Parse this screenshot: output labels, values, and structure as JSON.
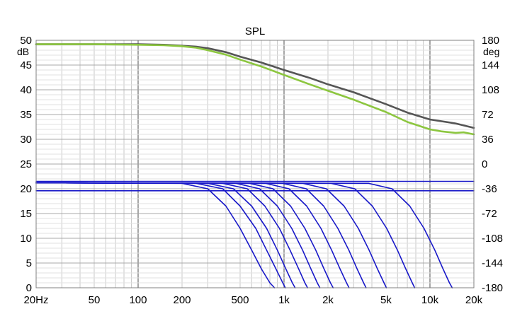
{
  "chart_data": {
    "type": "line",
    "title": "SPL",
    "x_scale": "log",
    "xlim": [
      20,
      20000
    ],
    "ylim_left": [
      0,
      50
    ],
    "ylim_right": [
      -180,
      180
    ],
    "left_unit": "dB",
    "right_unit": "deg",
    "x_ticks": [
      {
        "value": 20,
        "label": "20Hz"
      },
      {
        "value": 50,
        "label": "50"
      },
      {
        "value": 100,
        "label": "100"
      },
      {
        "value": 200,
        "label": "200"
      },
      {
        "value": 500,
        "label": "500"
      },
      {
        "value": 1000,
        "label": "1k"
      },
      {
        "value": 2000,
        "label": "2k"
      },
      {
        "value": 5000,
        "label": "5k"
      },
      {
        "value": 10000,
        "label": "10k"
      },
      {
        "value": 20000,
        "label": "20k"
      }
    ],
    "left_ticks": [
      "50",
      "45",
      "40",
      "35",
      "30",
      "25",
      "20",
      "15",
      "10",
      "5",
      "0"
    ],
    "left_tick_values": [
      50,
      45,
      40,
      35,
      30,
      25,
      20,
      15,
      10,
      5,
      0
    ],
    "right_ticks": [
      "180",
      "144",
      "108",
      "72",
      "36",
      "0",
      "-36",
      "-72",
      "-108",
      "-144",
      "-180"
    ],
    "right_tick_values": [
      180,
      144,
      108,
      72,
      36,
      0,
      -36,
      -72,
      -108,
      -144,
      -180
    ],
    "grid": true,
    "colors": {
      "gray": "#555555",
      "green": "#8cc63f",
      "blue": "#1818c8",
      "grid": "#c8c8c8",
      "major_grid": "#808080"
    },
    "series": [
      {
        "color": "#555555",
        "x": [
          20,
          50,
          100,
          150,
          200,
          250,
          300,
          400,
          500,
          700,
          1000,
          1500,
          2000,
          3000,
          5000,
          7000,
          10000,
          15000,
          20000
        ],
        "y": [
          49.2,
          49.2,
          49.2,
          49.1,
          48.9,
          48.7,
          48.4,
          47.6,
          46.7,
          45.5,
          44.0,
          42.4,
          41.1,
          39.5,
          37.1,
          35.4,
          34.0,
          33.2,
          32.3
        ]
      },
      {
        "color": "#8cc63f",
        "x": [
          20,
          50,
          100,
          150,
          200,
          250,
          300,
          400,
          500,
          700,
          1000,
          1500,
          2000,
          3000,
          5000,
          7000,
          10000,
          12000,
          15000,
          17000,
          20000
        ],
        "y": [
          49.2,
          49.2,
          49.1,
          49.0,
          48.8,
          48.5,
          48.0,
          47.1,
          46.1,
          44.7,
          43.0,
          41.1,
          39.8,
          38.0,
          35.5,
          33.5,
          32.0,
          31.6,
          31.3,
          31.4,
          31.0
        ]
      },
      {
        "color": "#1818c8",
        "x": [
          20,
          20000
        ],
        "y": [
          21.5,
          21.5
        ]
      },
      {
        "color": "#1818c8",
        "x": [
          20,
          20000
        ],
        "y": [
          19.6,
          19.6
        ]
      },
      {
        "color": "#1818c8",
        "x": [
          20,
          200,
          300,
          400,
          500,
          600,
          700,
          800,
          860
        ],
        "y": [
          21.2,
          21.1,
          20.0,
          16.5,
          12.0,
          7.6,
          3.8,
          1.0,
          0
        ]
      },
      {
        "color": "#1818c8",
        "x": [
          20,
          250,
          380,
          500,
          640,
          760,
          880,
          980,
          1020
        ],
        "y": [
          21.2,
          21.1,
          20.0,
          16.5,
          12.0,
          7.6,
          3.8,
          1.0,
          0
        ]
      },
      {
        "color": "#1818c8",
        "x": [
          20,
          300,
          450,
          600,
          760,
          900,
          1030,
          1140,
          1190
        ],
        "y": [
          21.2,
          21.1,
          20.0,
          16.5,
          12.0,
          7.6,
          3.8,
          1.0,
          0
        ]
      },
      {
        "color": "#1818c8",
        "x": [
          20,
          380,
          560,
          740,
          930,
          1100,
          1260,
          1390,
          1450
        ],
        "y": [
          21.2,
          21.1,
          20.0,
          16.5,
          12.0,
          7.6,
          3.8,
          1.0,
          0
        ]
      },
      {
        "color": "#1818c8",
        "x": [
          20,
          470,
          680,
          900,
          1130,
          1340,
          1530,
          1690,
          1760
        ],
        "y": [
          21.2,
          21.1,
          20.0,
          16.5,
          12.0,
          7.6,
          3.8,
          1.0,
          0
        ]
      },
      {
        "color": "#1818c8",
        "x": [
          20,
          580,
          840,
          1110,
          1390,
          1650,
          1880,
          2080,
          2170
        ],
        "y": [
          21.2,
          21.1,
          20.0,
          16.5,
          12.0,
          7.6,
          3.8,
          1.0,
          0
        ]
      },
      {
        "color": "#1818c8",
        "x": [
          20,
          750,
          1080,
          1430,
          1790,
          2120,
          2420,
          2680,
          2790
        ],
        "y": [
          21.2,
          21.1,
          20.0,
          16.5,
          12.0,
          7.6,
          3.8,
          1.0,
          0
        ]
      },
      {
        "color": "#1818c8",
        "x": [
          20,
          980,
          1420,
          1870,
          2340,
          2780,
          3170,
          3510,
          3650
        ],
        "y": [
          21.2,
          21.1,
          20.0,
          16.5,
          12.0,
          7.6,
          3.8,
          1.0,
          0
        ]
      },
      {
        "color": "#1818c8",
        "x": [
          20,
          1350,
          1950,
          2580,
          3230,
          3830,
          4370,
          4840,
          5030
        ],
        "y": [
          21.2,
          21.1,
          20.0,
          16.5,
          12.0,
          7.6,
          3.8,
          1.0,
          0
        ]
      },
      {
        "color": "#1818c8",
        "x": [
          20,
          2100,
          3050,
          4030,
          5050,
          5990,
          6830,
          7560,
          7860
        ],
        "y": [
          21.2,
          21.1,
          20.0,
          16.5,
          12.0,
          7.6,
          3.8,
          1.0,
          0
        ]
      },
      {
        "color": "#1818c8",
        "x": [
          20,
          3800,
          5500,
          7270,
          9100,
          10800,
          12300,
          13600,
          14200
        ],
        "y": [
          21.2,
          21.1,
          20.0,
          16.5,
          12.0,
          7.6,
          3.8,
          1.0,
          0
        ]
      }
    ]
  }
}
